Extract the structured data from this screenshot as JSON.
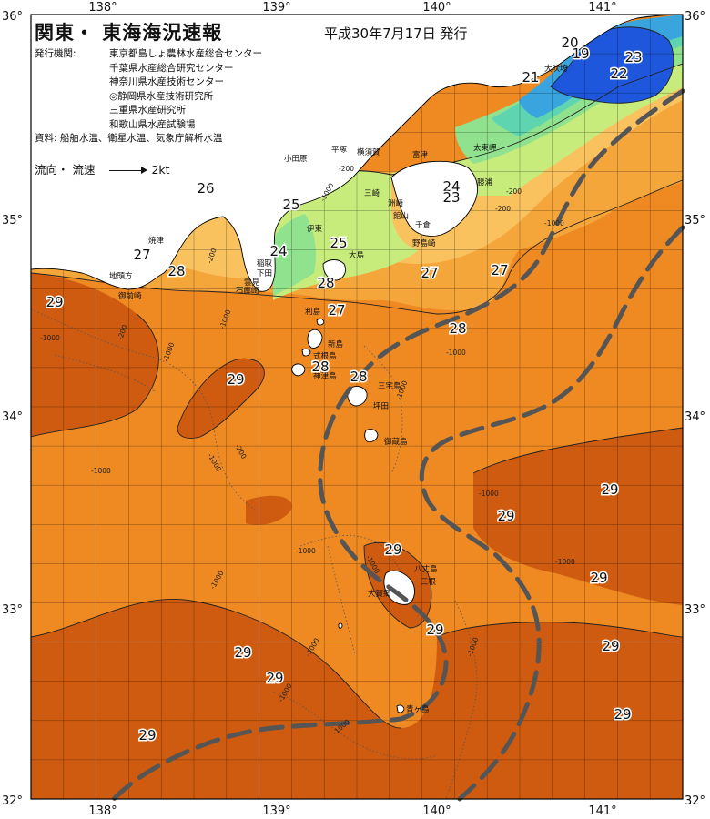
{
  "header": {
    "title": "関東・ 東海海況速報",
    "date": "平成30年7月17日 発行",
    "publisher_label": "発行機関:",
    "publishers": [
      "東京都島しょ農林水産総合センター",
      "千葉県水産総合研究センター",
      "神奈川県水産技術センター",
      "◎静岡県水産技術研究所",
      "三重県水産研究所",
      "和歌山県水産試験場"
    ],
    "source": "資料: 船舶水温、衛星水温、気象庁解析水温",
    "legend_label": "流向・ 流速",
    "legend_speed": "2kt"
  },
  "axes": {
    "lon_ticks": [
      "138°",
      "139°",
      "140°",
      "141°"
    ],
    "lat_ticks": [
      "36°",
      "35°",
      "34°",
      "33°",
      "32°"
    ]
  },
  "colors": {
    "t29": "#cf5b10",
    "t28": "#ef8a23",
    "t27": "#f5a63b",
    "t26": "#f9c25f",
    "t25": "#c8ec7c",
    "t24": "#90e28e",
    "t23": "#5ed5b0",
    "t22": "#3aa4de",
    "t21": "#1f57dc",
    "kuroshio": "#555555"
  },
  "sst_labels": [
    "20",
    "19",
    "23",
    "21",
    "22",
    "26",
    "25",
    "24",
    "23",
    "27",
    "28",
    "24",
    "25",
    "27",
    "27",
    "29",
    "28",
    "27",
    "28",
    "29",
    "28",
    "28",
    "29",
    "29",
    "29",
    "29",
    "29",
    "29",
    "29",
    "29",
    "29",
    "29"
  ],
  "place_labels": [
    "大吠埼",
    "太東岬",
    "勝浦",
    "富津",
    "館山",
    "千倉",
    "野島崎",
    "洲崎",
    "平塚",
    "小田原",
    "横須賀",
    "三崎",
    "伊東",
    "大島",
    "稲取",
    "下田",
    "石廊崎",
    "雲見",
    "焼津",
    "地頭方",
    "御前崎",
    "利島",
    "新島",
    "式根島",
    "神津島",
    "三宅島",
    "坪田",
    "御蔵島",
    "八丈島",
    "大賀郷",
    "三根",
    "青ヶ島"
  ],
  "depth_labels": [
    "-1000",
    "-200",
    "-1000",
    "-200",
    "-1000",
    "-200",
    "-1000",
    "-200",
    "-1000",
    "-1000",
    "-1000",
    "-1000",
    "-1000",
    "-1000",
    "-1000",
    "-1000",
    "-1000",
    "-200",
    "-200",
    "-1000",
    "-1000",
    "-1000",
    "-1000",
    "-1000"
  ]
}
